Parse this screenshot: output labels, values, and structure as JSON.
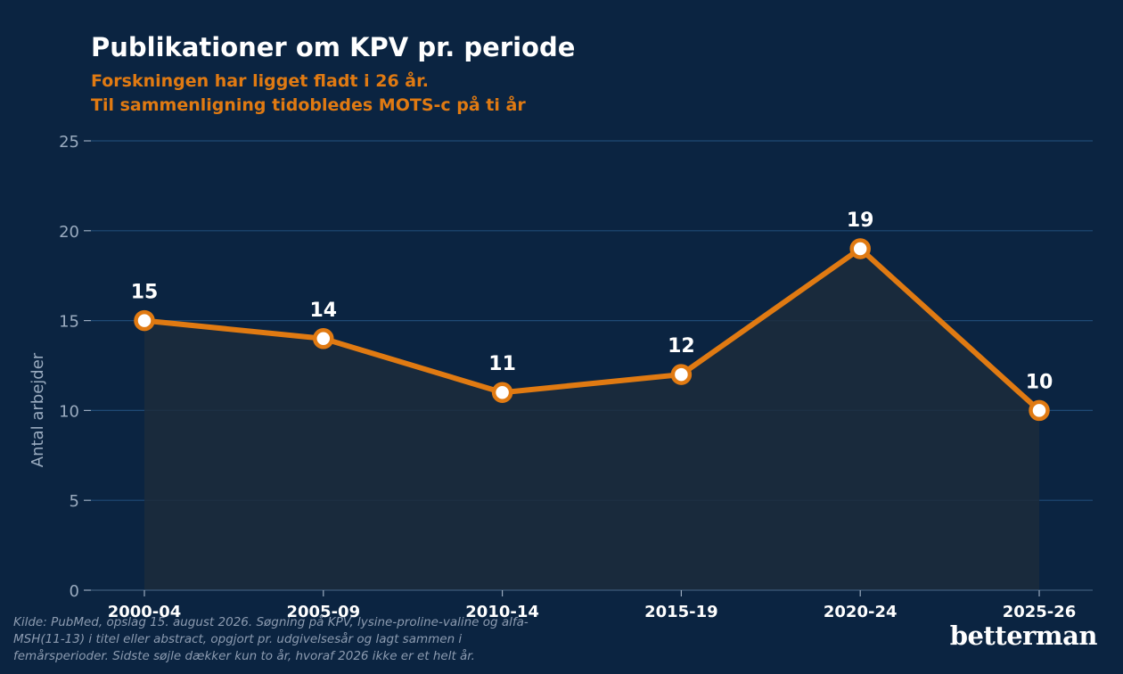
{
  "header": {
    "title": "Publikationer om KPV pr. periode",
    "subtitle_line1": "Forskningen har ligget fladt i 26 år.",
    "subtitle_line2": "Til sammenligning tidobledes MOTS-c på ti år"
  },
  "chart_data": {
    "type": "line",
    "title": "Publikationer om KPV pr. periode",
    "categories": [
      "2000-04",
      "2005-09",
      "2010-14",
      "2015-19",
      "2020-24",
      "2025-26"
    ],
    "values": [
      15,
      14,
      11,
      12,
      19,
      10
    ],
    "xlabel": "",
    "ylabel": "Antal arbejder",
    "ylim": [
      0,
      25
    ],
    "yticks": [
      0,
      5,
      10,
      15,
      20,
      25
    ],
    "grid": true,
    "area_fill": true,
    "data_labels": true,
    "colors": {
      "line": "#e07a12",
      "marker_fill": "#ffffff",
      "area": "#1c2b3c",
      "grid": "#1f4a75",
      "background": "#0b2441",
      "axis_text": "#9aabbf"
    }
  },
  "footer": {
    "source": "Kilde: PubMed, opslag 15. august 2026. Søgning på KPV, lysine-proline-valine og alfa-MSH(11-13) i titel eller abstract, opgjort pr. udgivelsesår og lagt sammen i femårsperioder. Sidste søjle dækker kun to år, hvoraf 2026 ikke er et helt år.",
    "brand": "betterman"
  }
}
